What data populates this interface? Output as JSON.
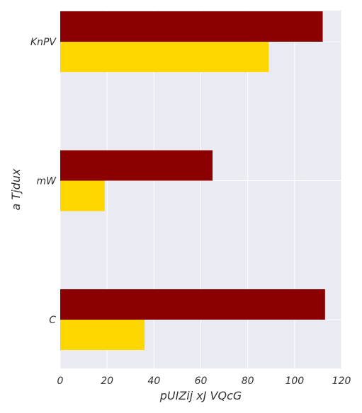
{
  "chart_data": {
    "type": "bar",
    "orientation": "horizontal",
    "categories": [
      "KnPV",
      "mW",
      "C"
    ],
    "series": [
      {
        "values": [
          112,
          65,
          113
        ],
        "color": "#8b0000"
      },
      {
        "values": [
          89,
          19,
          36
        ],
        "color": "#ffd700"
      }
    ],
    "xlabel": "pUIZij xJ VQcG",
    "ylabel": "a Tjdux",
    "xlim": [
      0,
      120
    ],
    "xticks": [
      0,
      20,
      40,
      60,
      80,
      100,
      120
    ],
    "grid": true,
    "style": {
      "plot_background": "#eaeaf2",
      "grid_color": "#ffffff",
      "text_color": "#333333"
    }
  }
}
